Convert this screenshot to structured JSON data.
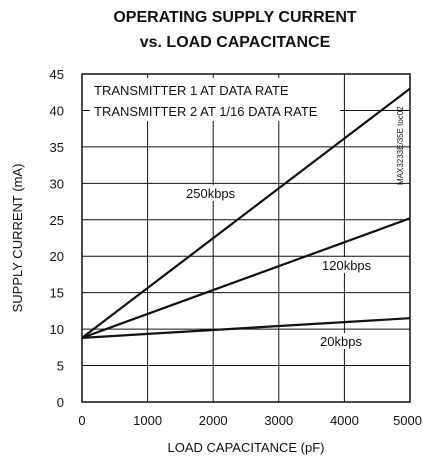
{
  "chart_data": {
    "type": "line",
    "title_lines": [
      "OPERATING SUPPLY CURRENT",
      "vs. LOAD CAPACITANCE"
    ],
    "xlabel": "LOAD CAPACITANCE (pF)",
    "ylabel": "SUPPLY CURRENT (mA)",
    "xlim": [
      0,
      5000
    ],
    "ylim": [
      0,
      45
    ],
    "xticks": [
      0,
      1000,
      2000,
      3000,
      4000,
      5000
    ],
    "yticks": [
      0,
      5,
      10,
      15,
      20,
      25,
      30,
      35,
      40,
      45
    ],
    "grid": true,
    "annotations": [
      "TRANSMITTER 1 AT DATA RATE",
      "TRANSMITTER 2 AT 1/16 DATA RATE"
    ],
    "side_id": "MAX3233E/35E toc02",
    "series": [
      {
        "name": "250kbps",
        "x": [
          0,
          5000
        ],
        "y": [
          8.8,
          43.0
        ]
      },
      {
        "name": "120kbps",
        "x": [
          0,
          5000
        ],
        "y": [
          8.8,
          25.2
        ]
      },
      {
        "name": "20kbps",
        "x": [
          0,
          5000
        ],
        "y": [
          8.8,
          11.5
        ]
      }
    ]
  }
}
